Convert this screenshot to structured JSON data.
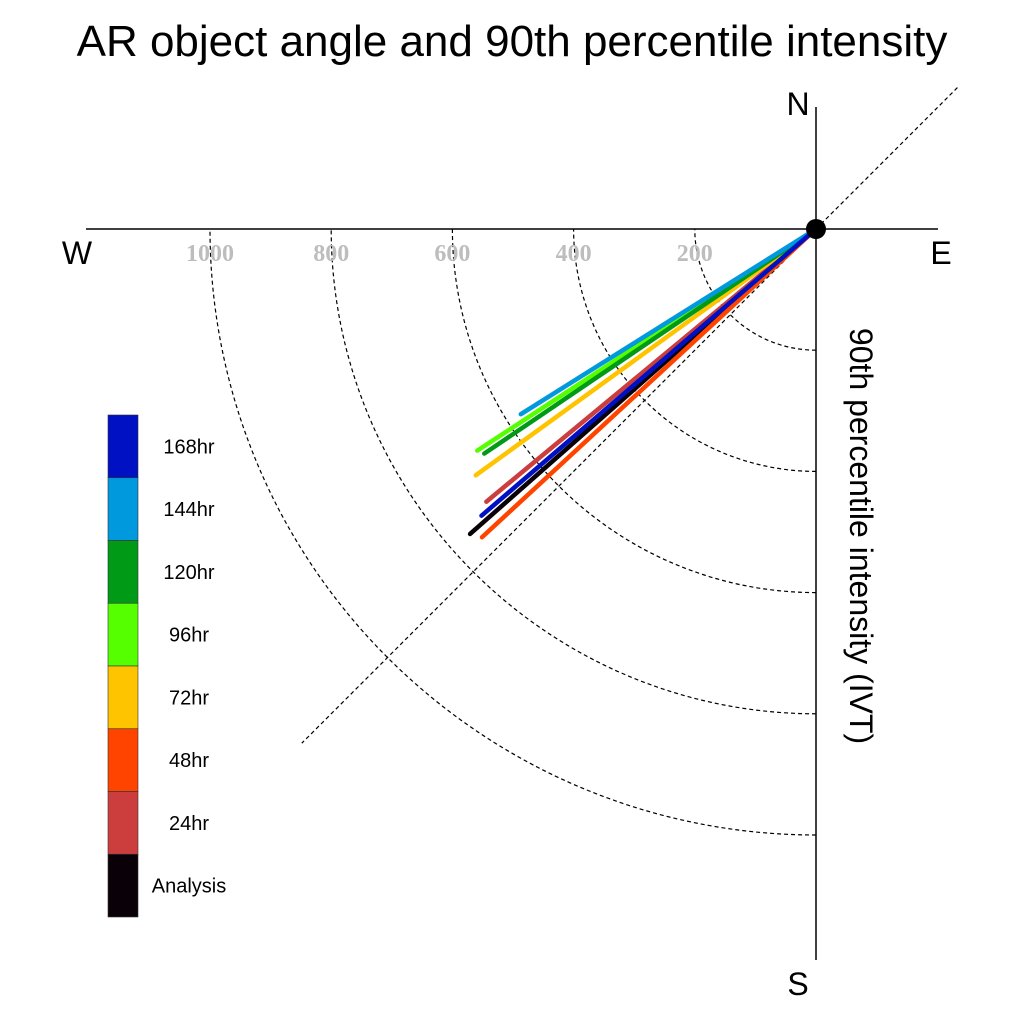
{
  "chart_data": {
    "type": "polar",
    "title": "AR object angle and 90th percentile intensity",
    "radial_label": "90th percentile intensity (IVT)",
    "compass": {
      "north": "N",
      "south": "S",
      "east": "E",
      "west": "W"
    },
    "radial_ticks": [
      200,
      400,
      600,
      800,
      1000
    ],
    "radial_tick_labels": [
      "200",
      "400",
      "600",
      "800",
      "1000"
    ],
    "rmax": 1200,
    "grid": true,
    "legend_position": "left",
    "series": [
      {
        "name": "Analysis",
        "color": "#0a0008",
        "angle_deg": 228.6,
        "intensity": 761
      },
      {
        "name": "24hr",
        "color": "#cc3d3d",
        "angle_deg": 230.4,
        "intensity": 706
      },
      {
        "name": "48hr",
        "color": "#ff4400",
        "angle_deg": 227.3,
        "intensity": 750
      },
      {
        "name": "72hr",
        "color": "#ffc400",
        "angle_deg": 234.1,
        "intensity": 693
      },
      {
        "name": "96hr",
        "color": "#55ff00",
        "angle_deg": 236.8,
        "intensity": 668
      },
      {
        "name": "120hr",
        "color": "#009a17",
        "angle_deg": 235.9,
        "intensity": 661
      },
      {
        "name": "144hr",
        "color": "#0099dd",
        "angle_deg": 237.9,
        "intensity": 575
      },
      {
        "name": "168hr",
        "color": "#0011c4",
        "angle_deg": 229.4,
        "intensity": 727
      }
    ]
  }
}
